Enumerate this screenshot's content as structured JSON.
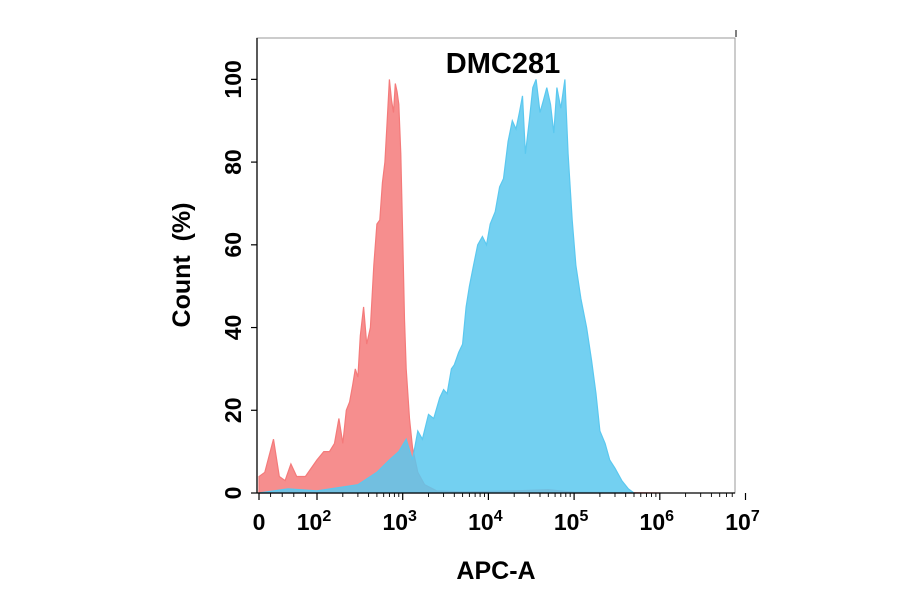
{
  "chart_data": {
    "type": "area",
    "title": "DMC281",
    "xlabel": "APC-A",
    "ylabel": "Count  (%)",
    "xscale": "biexponential",
    "xlim": [
      0,
      10000000
    ],
    "ylim": [
      0,
      110
    ],
    "x_tick_labels": [
      {
        "value": 0,
        "base": "0",
        "exp": ""
      },
      {
        "value": 100,
        "base": "10",
        "exp": "2"
      },
      {
        "value": 1000,
        "base": "10",
        "exp": "3"
      },
      {
        "value": 10000,
        "base": "10",
        "exp": "4"
      },
      {
        "value": 100000,
        "base": "10",
        "exp": "5"
      },
      {
        "value": 1000000,
        "base": "10",
        "exp": "6"
      },
      {
        "value": 10000000,
        "base": "10",
        "exp": "7"
      }
    ],
    "y_ticks": [
      0,
      20,
      40,
      60,
      80,
      100
    ],
    "grid": false,
    "legend": "none",
    "series": [
      {
        "color": "#f47a7a",
        "points": [
          [
            0,
            4
          ],
          [
            10,
            5
          ],
          [
            25,
            13
          ],
          [
            35,
            4
          ],
          [
            45,
            3
          ],
          [
            55,
            7
          ],
          [
            65,
            4
          ],
          [
            80,
            4
          ],
          [
            100,
            8
          ],
          [
            120,
            10
          ],
          [
            140,
            10
          ],
          [
            160,
            12
          ],
          [
            180,
            18
          ],
          [
            200,
            12
          ],
          [
            220,
            20
          ],
          [
            240,
            22
          ],
          [
            260,
            26
          ],
          [
            280,
            30
          ],
          [
            300,
            28
          ],
          [
            320,
            38
          ],
          [
            350,
            45
          ],
          [
            380,
            36
          ],
          [
            420,
            40
          ],
          [
            460,
            55
          ],
          [
            500,
            65
          ],
          [
            540,
            66
          ],
          [
            580,
            75
          ],
          [
            620,
            80
          ],
          [
            660,
            90
          ],
          [
            700,
            100
          ],
          [
            740,
            95
          ],
          [
            780,
            92
          ],
          [
            820,
            99
          ],
          [
            860,
            97
          ],
          [
            900,
            94
          ],
          [
            950,
            82
          ],
          [
            1000,
            62
          ],
          [
            1050,
            42
          ],
          [
            1100,
            30
          ],
          [
            1200,
            18
          ],
          [
            1300,
            11
          ],
          [
            1500,
            5
          ],
          [
            1800,
            2
          ],
          [
            2500,
            0.5
          ],
          [
            5000,
            0.3
          ],
          [
            20000,
            0.5
          ],
          [
            50000,
            0.8
          ],
          [
            100000,
            0.2
          ],
          [
            1000000,
            0
          ]
        ]
      },
      {
        "color": "#5bc8ef",
        "points": [
          [
            0,
            0
          ],
          [
            50,
            1
          ],
          [
            100,
            0.5
          ],
          [
            300,
            2
          ],
          [
            500,
            5
          ],
          [
            700,
            8
          ],
          [
            900,
            10
          ],
          [
            1100,
            13
          ],
          [
            1300,
            8
          ],
          [
            1500,
            15
          ],
          [
            1700,
            13
          ],
          [
            2000,
            19
          ],
          [
            2300,
            18
          ],
          [
            2700,
            23
          ],
          [
            3000,
            25
          ],
          [
            3300,
            24
          ],
          [
            3700,
            30
          ],
          [
            4000,
            31
          ],
          [
            4500,
            34
          ],
          [
            5000,
            36
          ],
          [
            5500,
            45
          ],
          [
            6000,
            50
          ],
          [
            6700,
            55
          ],
          [
            7500,
            60
          ],
          [
            8500,
            62
          ],
          [
            9500,
            60
          ],
          [
            10500,
            65
          ],
          [
            12000,
            68
          ],
          [
            13500,
            74
          ],
          [
            15000,
            76
          ],
          [
            17000,
            85
          ],
          [
            19000,
            90
          ],
          [
            21000,
            88
          ],
          [
            23000,
            92
          ],
          [
            25000,
            96
          ],
          [
            27000,
            82
          ],
          [
            30000,
            90
          ],
          [
            33000,
            98
          ],
          [
            36000,
            100
          ],
          [
            40000,
            92
          ],
          [
            44000,
            95
          ],
          [
            48000,
            98
          ],
          [
            53000,
            94
          ],
          [
            58000,
            87
          ],
          [
            63000,
            98
          ],
          [
            70000,
            93
          ],
          [
            78000,
            100
          ],
          [
            85000,
            82
          ],
          [
            95000,
            66
          ],
          [
            105000,
            55
          ],
          [
            120000,
            47
          ],
          [
            140000,
            40
          ],
          [
            160000,
            32
          ],
          [
            180000,
            24
          ],
          [
            200000,
            15
          ],
          [
            230000,
            12
          ],
          [
            260000,
            8
          ],
          [
            300000,
            6
          ],
          [
            360000,
            3
          ],
          [
            430000,
            1
          ],
          [
            500000,
            0
          ]
        ]
      }
    ]
  }
}
